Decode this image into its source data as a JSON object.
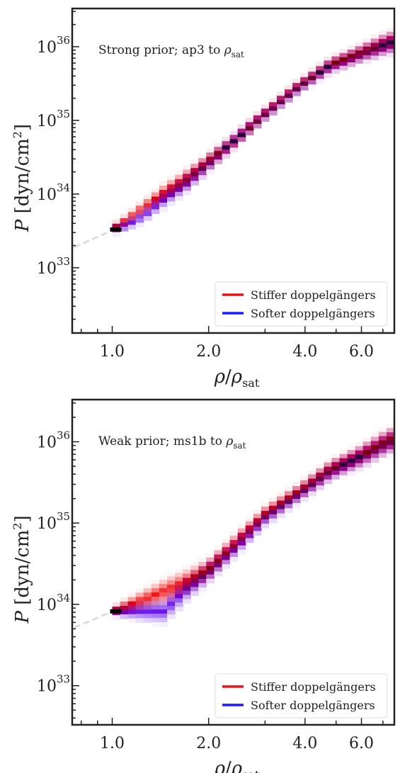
{
  "chart_data": [
    {
      "type": "heatmap",
      "title": "",
      "annotation": "Strong prior; ap3 to ρsat",
      "annotation_main": "Strong prior; ap3 to ",
      "annotation_symbol": "ρ",
      "annotation_sub": "sat",
      "xlabel": "ρ/ρsat",
      "ylabel": "P [dyn/cm2]",
      "x_scale": "log",
      "y_scale": "log",
      "xlim": [
        0.75,
        7.6
      ],
      "ylim": [
        1.3e+32,
        3.3e+36
      ],
      "x_ticks": [
        {
          "value": 1.0,
          "label": "1.0"
        },
        {
          "value": 2.0,
          "label": "2.0"
        },
        {
          "value": 4.0,
          "label": "4.0"
        },
        {
          "value": 6.0,
          "label": "6.0"
        }
      ],
      "y_ticks": [
        {
          "value": 1e+33,
          "base": "10",
          "exp": "33"
        },
        {
          "value": 1e+34,
          "base": "10",
          "exp": "34"
        },
        {
          "value": 1e+35,
          "base": "10",
          "exp": "35"
        },
        {
          "value": 1e+36,
          "base": "10",
          "exp": "36"
        }
      ],
      "series": [
        {
          "name": "Stiffer doppelgängers",
          "color": "#e8141c",
          "x": [
            1.0,
            1.1,
            1.25,
            1.45,
            1.7,
            2.0,
            2.4,
            3.0,
            3.8,
            4.8,
            6.0,
            7.3
          ],
          "y": [
            3.3e+33,
            4.4e+33,
            6.6e+33,
            1.05e+34,
            1.6e+34,
            2.8e+34,
            5.2e+34,
            1.25e+35,
            2.9e+35,
            5.7e+35,
            8.3e+35,
            1.15e+36
          ]
        },
        {
          "name": "Softer doppelgängers",
          "color": "#1a1aff",
          "x": [
            1.0,
            1.1,
            1.25,
            1.45,
            1.7,
            2.0,
            2.4,
            3.0,
            3.8,
            4.8,
            6.0,
            7.3
          ],
          "y": [
            3.3e+33,
            3.7e+33,
            5e+33,
            8.5e+33,
            1.4e+34,
            2.6e+34,
            5.3e+34,
            1.2e+35,
            2.75e+35,
            5.5e+35,
            8e+35,
            1.1e+36
          ]
        }
      ],
      "reference_curve": {
        "x": [
          0.76,
          0.85,
          0.95,
          1.0
        ],
        "y": [
          1.9e+33,
          2.35e+33,
          2.9e+33,
          3.3e+33
        ]
      },
      "band_width_decades": [
        0.1,
        0.1,
        0.12,
        0.16,
        0.18,
        0.16,
        0.14,
        0.12,
        0.12,
        0.14,
        0.16,
        0.2
      ],
      "legend_position": "lower right"
    },
    {
      "type": "heatmap",
      "title": "",
      "annotation": "Weak prior; ms1b to ρsat",
      "annotation_main": "Weak prior; ms1b to ",
      "annotation_symbol": "ρ",
      "annotation_sub": "sat",
      "xlabel": "ρ/ρsat",
      "ylabel": "P [dyn/cm2]",
      "x_scale": "log",
      "y_scale": "log",
      "xlim": [
        0.75,
        7.6
      ],
      "ylim": [
        3.3e+32,
        3.3e+36
      ],
      "x_ticks": [
        {
          "value": 1.0,
          "label": "1.0"
        },
        {
          "value": 2.0,
          "label": "2.0"
        },
        {
          "value": 4.0,
          "label": "4.0"
        },
        {
          "value": 6.0,
          "label": "6.0"
        }
      ],
      "y_ticks": [
        {
          "value": 1e+33,
          "base": "10",
          "exp": "33"
        },
        {
          "value": 1e+34,
          "base": "10",
          "exp": "34"
        },
        {
          "value": 1e+35,
          "base": "10",
          "exp": "35"
        },
        {
          "value": 1e+36,
          "base": "10",
          "exp": "36"
        }
      ],
      "series": [
        {
          "name": "Stiffer doppelgängers",
          "color": "#e8141c",
          "x": [
            1.0,
            1.1,
            1.25,
            1.45,
            1.7,
            2.0,
            2.4,
            3.0,
            3.8,
            4.8,
            6.0,
            7.3
          ],
          "y": [
            8.2e+33,
            9.5e+33,
            1.15e+34,
            1.45e+34,
            1.9e+34,
            2.7e+34,
            5.5e+34,
            1.3e+35,
            2.4e+35,
            4.6e+35,
            6.8e+35,
            1.05e+36
          ]
        },
        {
          "name": "Softer doppelgängers",
          "color": "#1a1aff",
          "x": [
            1.0,
            1.1,
            1.25,
            1.45,
            1.7,
            2.0,
            2.4,
            3.0,
            3.8,
            4.8,
            6.0,
            7.3
          ],
          "y": [
            8.2e+33,
            8.2e+33,
            8.2e+33,
            8.2e+33,
            1.5e+34,
            2.5e+34,
            4.8e+34,
            1.15e+35,
            2.2e+35,
            4.3e+35,
            6.5e+35,
            1e+36
          ]
        }
      ],
      "reference_curve": {
        "x": [
          0.76,
          0.85,
          0.95,
          1.0
        ],
        "y": [
          5.2e+33,
          6.2e+33,
          7.5e+33,
          8.2e+33
        ]
      },
      "band_width_decades": [
        0.08,
        0.12,
        0.16,
        0.2,
        0.2,
        0.18,
        0.16,
        0.14,
        0.14,
        0.16,
        0.18,
        0.2
      ],
      "legend_position": "lower right"
    }
  ],
  "legend": {
    "stiffer_label": "Stiffer doppelgängers",
    "softer_label": "Softer doppelgängers"
  },
  "axis_text": {
    "x_rho": "ρ",
    "x_sub": "sat",
    "y_p": "P",
    "y_unit": "[dyn/cm",
    "y_exp": "2",
    "y_close": "]"
  }
}
